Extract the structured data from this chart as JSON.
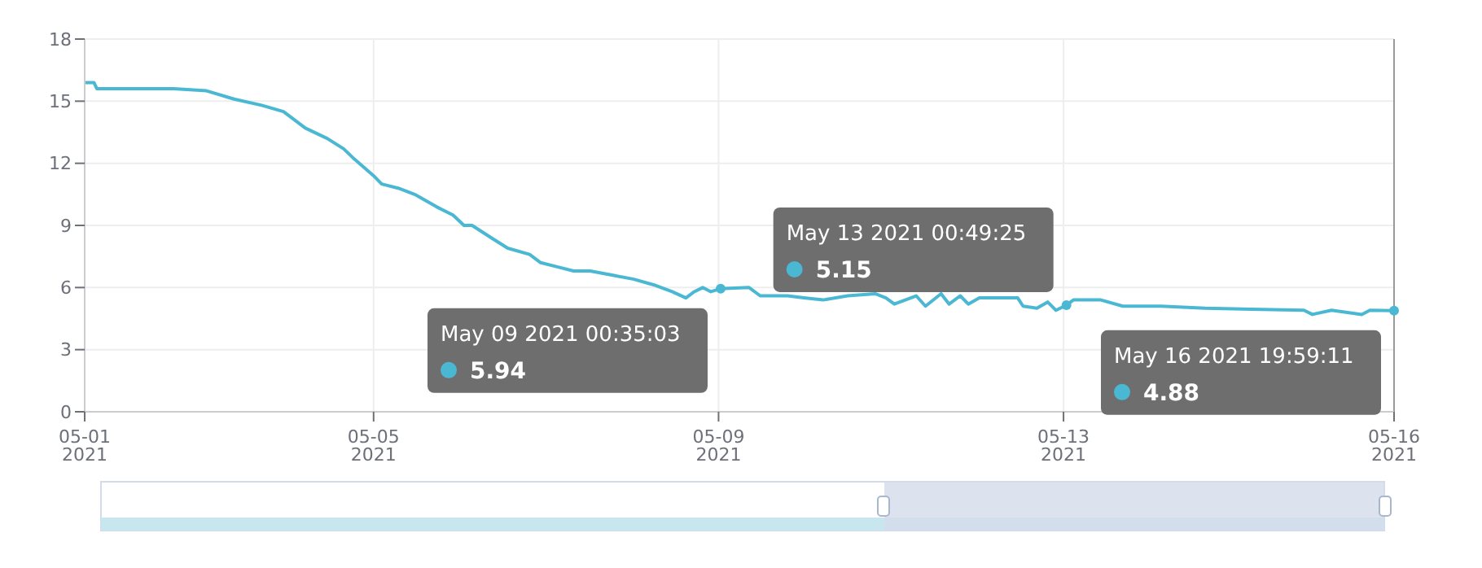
{
  "chart_data": {
    "type": "line",
    "x": [
      "2021-05-01T15:36",
      "2021-05-01T18:10",
      "2021-05-01T19:00",
      "2021-05-02T13:15",
      "2021-05-02T16:20",
      "2021-05-03T01:30",
      "2021-05-03T09:10",
      "2021-05-03T16:50",
      "2021-05-03T22:55",
      "2021-05-04T05:00",
      "2021-05-04T11:05",
      "2021-05-04T15:40",
      "2021-05-04T18:40",
      "2021-05-05T00:00",
      "2021-05-05T02:15",
      "2021-05-05T06:50",
      "2021-05-05T11:25",
      "2021-05-05T17:30",
      "2021-05-05T22:05",
      "2021-05-06T01:10",
      "2021-05-06T03:25",
      "2021-05-06T08:45",
      "2021-05-06T13:20",
      "2021-05-06T19:25",
      "2021-05-06T22:30",
      "2021-05-07T03:05",
      "2021-05-07T07:40",
      "2021-05-07T12:15",
      "2021-05-07T18:20",
      "2021-05-08T00:25",
      "2021-05-08T06:30",
      "2021-05-08T11:05",
      "2021-05-08T14:55",
      "2021-05-08T17:15",
      "2021-05-08T19:35",
      "2021-05-08T21:50",
      "2021-05-09T00:35",
      "2021-05-09T08:30",
      "2021-05-09T11:35",
      "2021-05-09T19:10",
      "2021-05-09T23:45",
      "2021-05-10T05:05",
      "2021-05-10T11:55",
      "2021-05-10T19:35",
      "2021-05-10T22:35",
      "2021-05-11T00:55",
      "2021-05-11T07:00",
      "2021-05-11T09:35",
      "2021-05-11T13:55",
      "2021-05-11T16:10",
      "2021-05-11T19:15",
      "2021-05-11T21:30",
      "2021-05-12T00:35",
      "2021-05-12T11:15",
      "2021-05-12T12:45",
      "2021-05-12T16:35",
      "2021-05-12T19:35",
      "2021-05-12T21:55",
      "2021-05-13T00:49",
      "2021-05-13T02:45",
      "2021-05-13T10:25",
      "2021-05-13T16:30",
      "2021-05-14T03:10",
      "2021-05-14T15:25",
      "2021-05-15T18:55",
      "2021-05-15T21:15",
      "2021-05-16T02:35",
      "2021-05-16T11:00",
      "2021-05-16T13:15",
      "2021-05-16T19:59"
    ],
    "series": [
      {
        "color": "#4bb8d3",
        "values": [
          15.9,
          15.9,
          15.6,
          15.6,
          15.6,
          15.5,
          15.1,
          14.8,
          14.5,
          13.7,
          13.2,
          12.7,
          12.2,
          11.4,
          11.0,
          10.8,
          10.5,
          9.9,
          9.5,
          9.0,
          9.0,
          8.4,
          7.9,
          7.6,
          7.2,
          7.0,
          6.8,
          6.8,
          6.6,
          6.4,
          6.1,
          5.8,
          5.5,
          5.8,
          6.0,
          5.8,
          5.94,
          6.0,
          5.6,
          5.6,
          5.5,
          5.4,
          5.6,
          5.7,
          5.5,
          5.2,
          5.6,
          5.1,
          5.7,
          5.2,
          5.6,
          5.2,
          5.5,
          5.5,
          5.1,
          5.0,
          5.3,
          4.9,
          5.15,
          5.4,
          5.4,
          5.1,
          5.1,
          5.0,
          4.9,
          4.7,
          4.9,
          4.7,
          4.9,
          4.88
        ]
      }
    ],
    "xlim": [
      "2021-05-01T15:36",
      "2021-05-16T19:59"
    ],
    "xticks": [
      {
        "value": "2021-05-01T15:36",
        "label": "05-01\n2021"
      },
      {
        "value": "2021-05-05",
        "label": "05-05\n2021"
      },
      {
        "value": "2021-05-09",
        "label": "05-09\n2021"
      },
      {
        "value": "2021-05-13",
        "label": "05-13\n2021"
      },
      {
        "value": "2021-05-16T19:59",
        "label": "05-16\n2021"
      }
    ],
    "ylim": [
      0,
      18
    ],
    "yticks": [
      0,
      3,
      6,
      9,
      12,
      15,
      18
    ],
    "grid": true,
    "marker": "none",
    "line_style": "solid",
    "ref_lines": [
      {
        "axis": "x",
        "value": "2021-05-16T19:59",
        "label": null,
        "color": "#999999"
      }
    ],
    "annotations": [
      {
        "text": "May 09 2021 00:35:03\n5.94",
        "x": "2021-05-09T00:35",
        "y": 5.94
      },
      {
        "text": "May 13 2021 00:49:25\n5.15",
        "x": "2021-05-13T00:49",
        "y": 5.15
      },
      {
        "text": "May 16 2021 19:59:11\n4.88",
        "x": "2021-05-16T19:59",
        "y": 4.88
      }
    ]
  }
}
